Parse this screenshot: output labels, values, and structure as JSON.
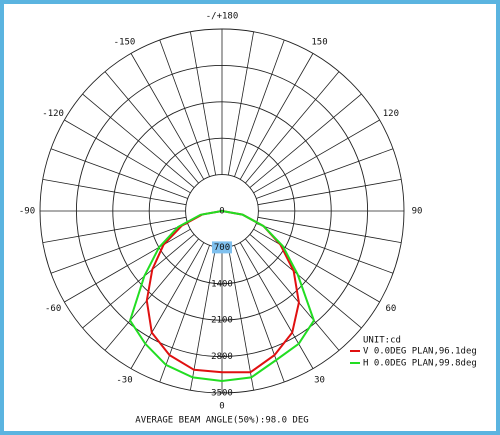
{
  "chart_data": {
    "type": "polar",
    "title": "AVERAGE BEAM ANGLE(50%):98.0 DEG",
    "unit_label": "UNIT:cd",
    "x": [
      -90,
      -80,
      -70,
      -60,
      -50,
      -40,
      -30,
      -20,
      -10,
      0,
      10,
      20,
      30,
      40,
      50,
      60,
      70,
      80,
      90
    ],
    "series": [
      {
        "name": "V 0.0DEG PLAN,96.1deg",
        "color": "#e01010",
        "values": [
          0,
          380,
          820,
          1300,
          1750,
          2250,
          2700,
          2950,
          3100,
          3100,
          3150,
          2950,
          2700,
          2300,
          1800,
          1300,
          850,
          400,
          0
        ]
      },
      {
        "name": "H 0.0DEG PLAN,99.8deg",
        "color": "#22dd22",
        "values": [
          0,
          420,
          900,
          1400,
          1950,
          2750,
          2950,
          3150,
          3250,
          3270,
          3250,
          3050,
          2950,
          2750,
          1900,
          1350,
          850,
          400,
          0
        ]
      }
    ],
    "ylim": [
      0,
      3500
    ],
    "yticks": [
      0,
      700,
      1400,
      2100,
      2800,
      3500
    ],
    "xticks": [
      {
        "value": 180,
        "label": "-/+180"
      },
      150,
      120,
      90,
      60,
      30,
      0,
      -30,
      -60,
      -90,
      -120,
      -150
    ],
    "grid": true
  }
}
